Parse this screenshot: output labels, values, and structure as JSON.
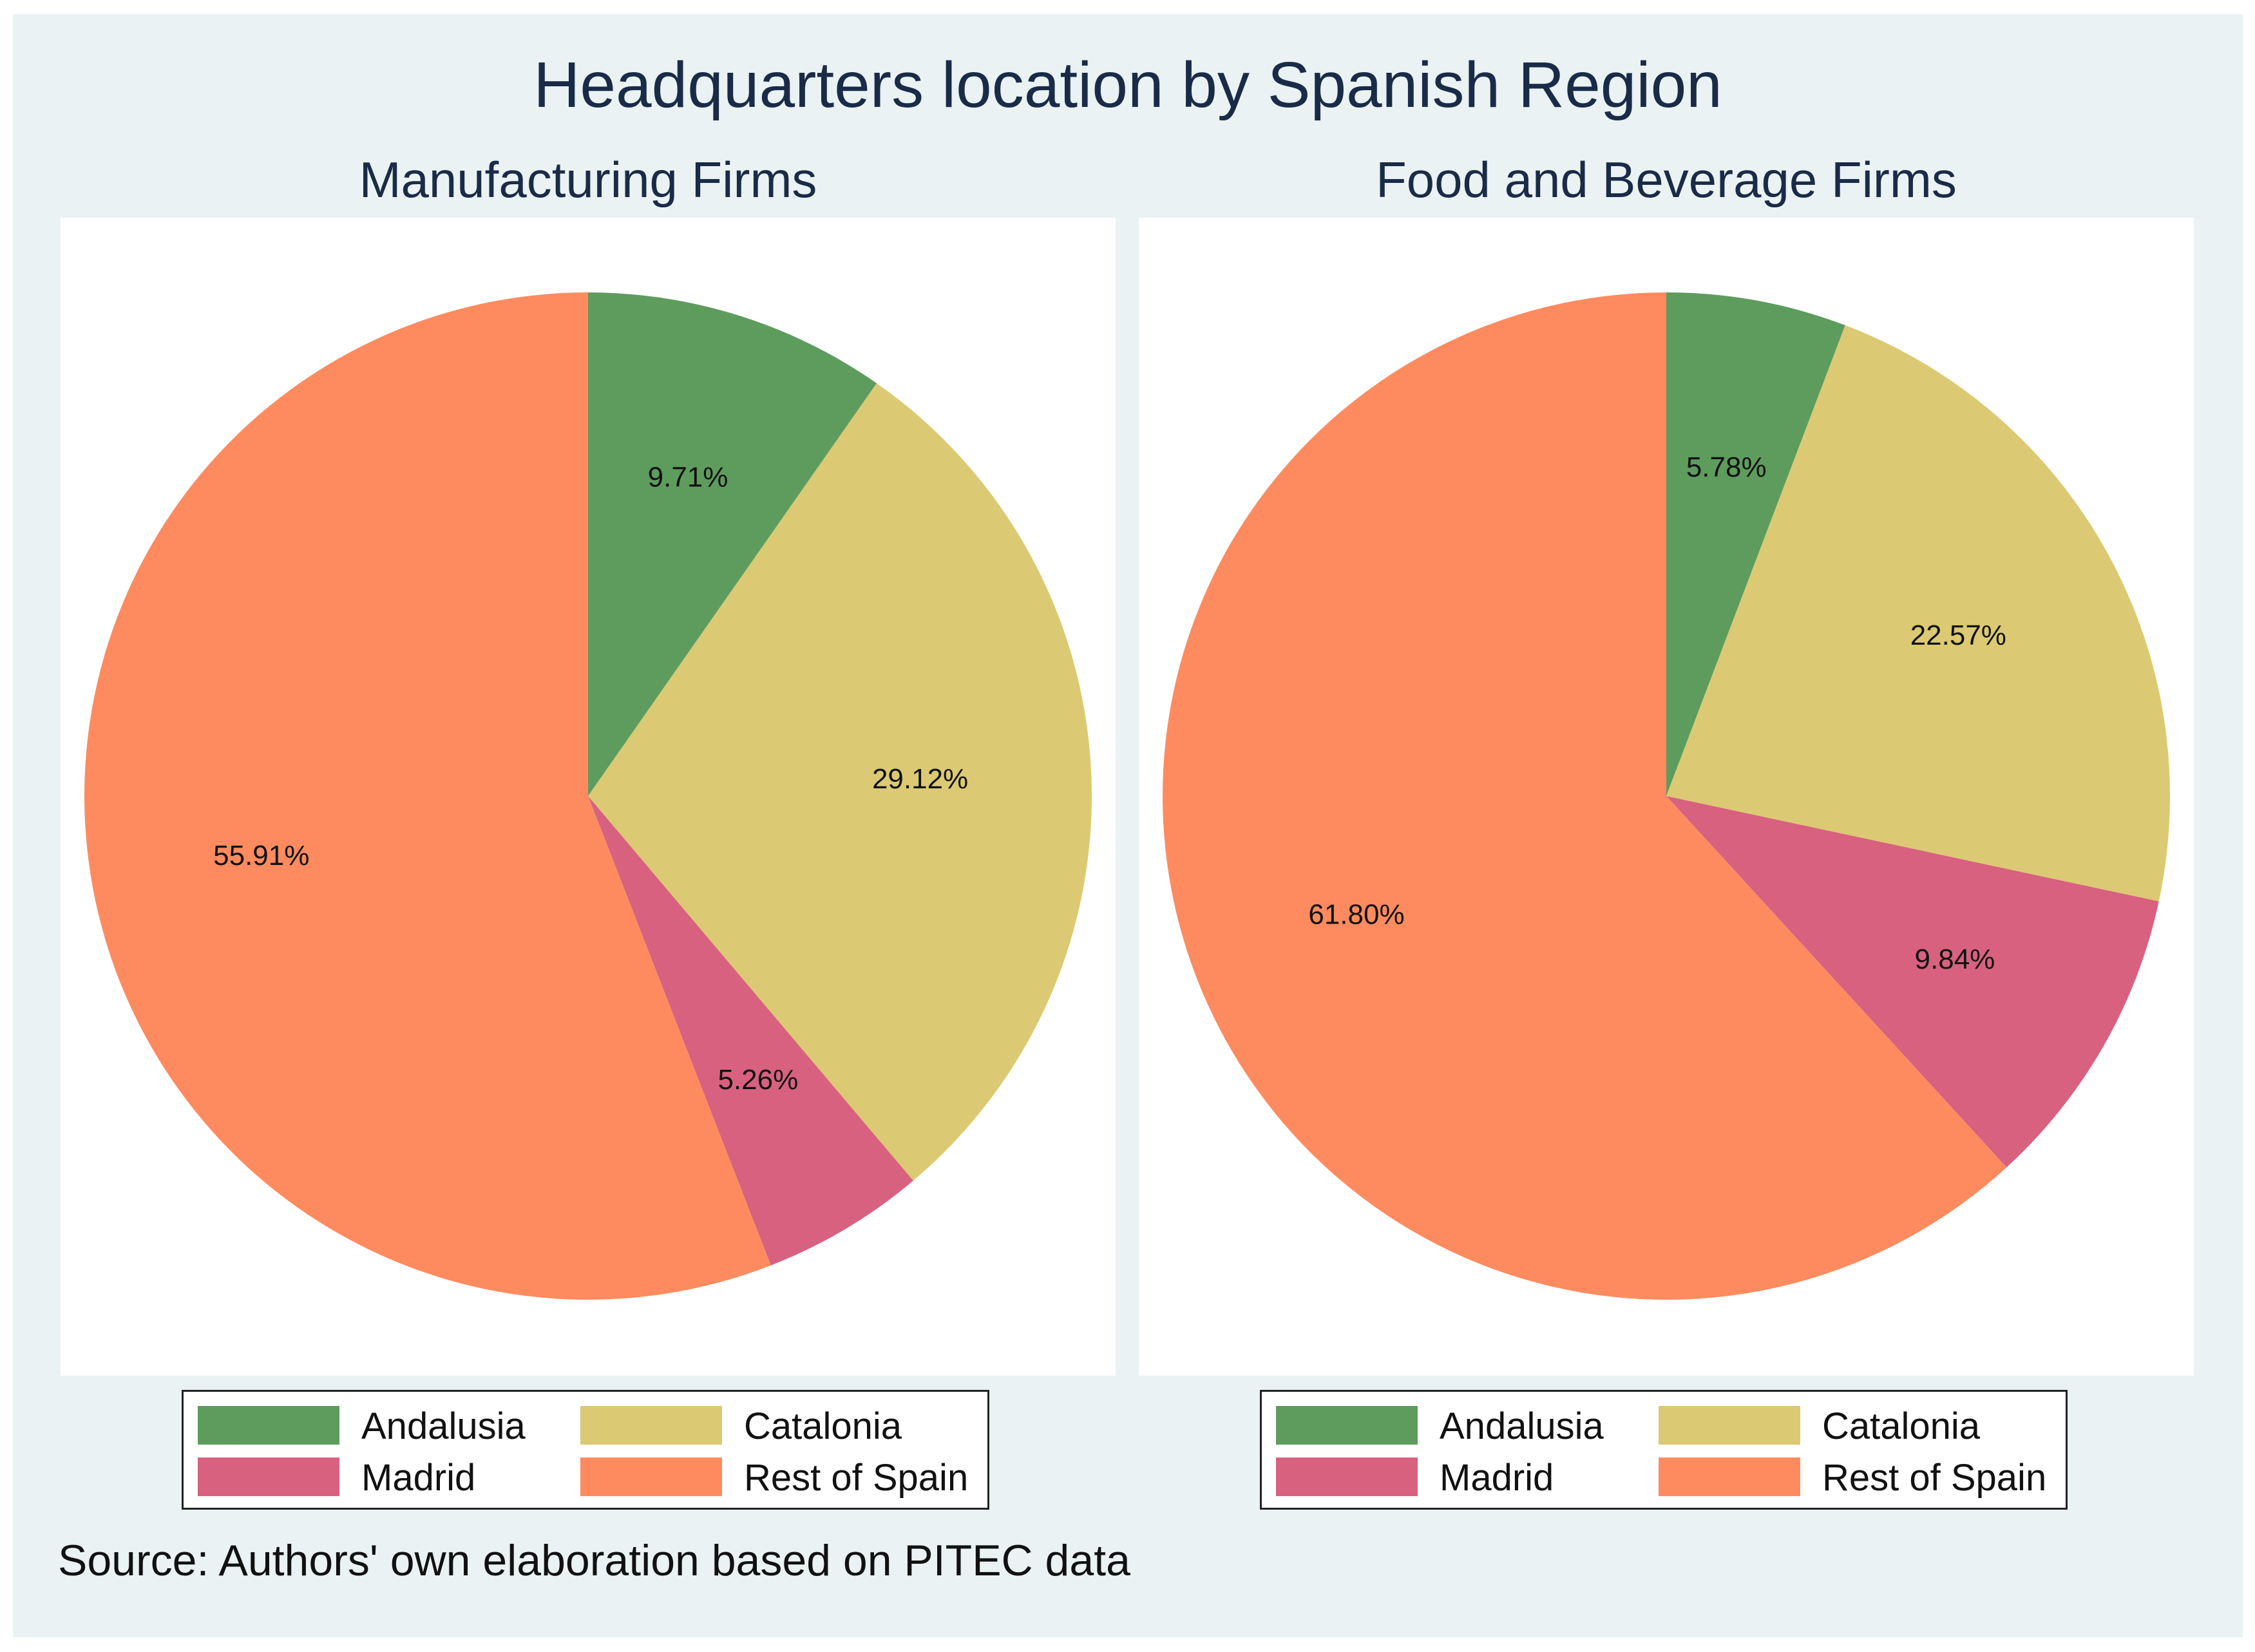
{
  "title": "Headquarters location by Spanish Region",
  "source": "Source: Authors' own elaboration based on PITEC data",
  "colors": {
    "Andalusia": "#5e9c5e",
    "Catalonia": "#dcc973",
    "Madrid": "#d8617f",
    "Rest of Spain": "#fe8b5f",
    "background": "#eaf2f3",
    "plot_background": "#ffffff"
  },
  "chart_data": [
    {
      "type": "pie",
      "title": "Manufacturing Firms",
      "start_angle_deg": 90,
      "direction": "clockwise",
      "categories": [
        "Andalusia",
        "Catalonia",
        "Madrid",
        "Rest of Spain"
      ],
      "values": [
        9.71,
        29.12,
        5.26,
        55.91
      ],
      "labels": [
        "9.71%",
        "29.12%",
        "5.26%",
        "55.91%"
      ],
      "legend": {
        "position": "bottom",
        "items": [
          "Andalusia",
          "Catalonia",
          "Madrid",
          "Rest of Spain"
        ]
      }
    },
    {
      "type": "pie",
      "title": "Food and Beverage Firms",
      "start_angle_deg": 90,
      "direction": "clockwise",
      "categories": [
        "Andalusia",
        "Catalonia",
        "Madrid",
        "Rest of Spain"
      ],
      "values": [
        5.78,
        22.57,
        9.84,
        61.8
      ],
      "labels": [
        "5.78%",
        "22.57%",
        "9.84%",
        "61.80%"
      ],
      "legend": {
        "position": "bottom",
        "items": [
          "Andalusia",
          "Catalonia",
          "Madrid",
          "Rest of Spain"
        ]
      }
    }
  ]
}
